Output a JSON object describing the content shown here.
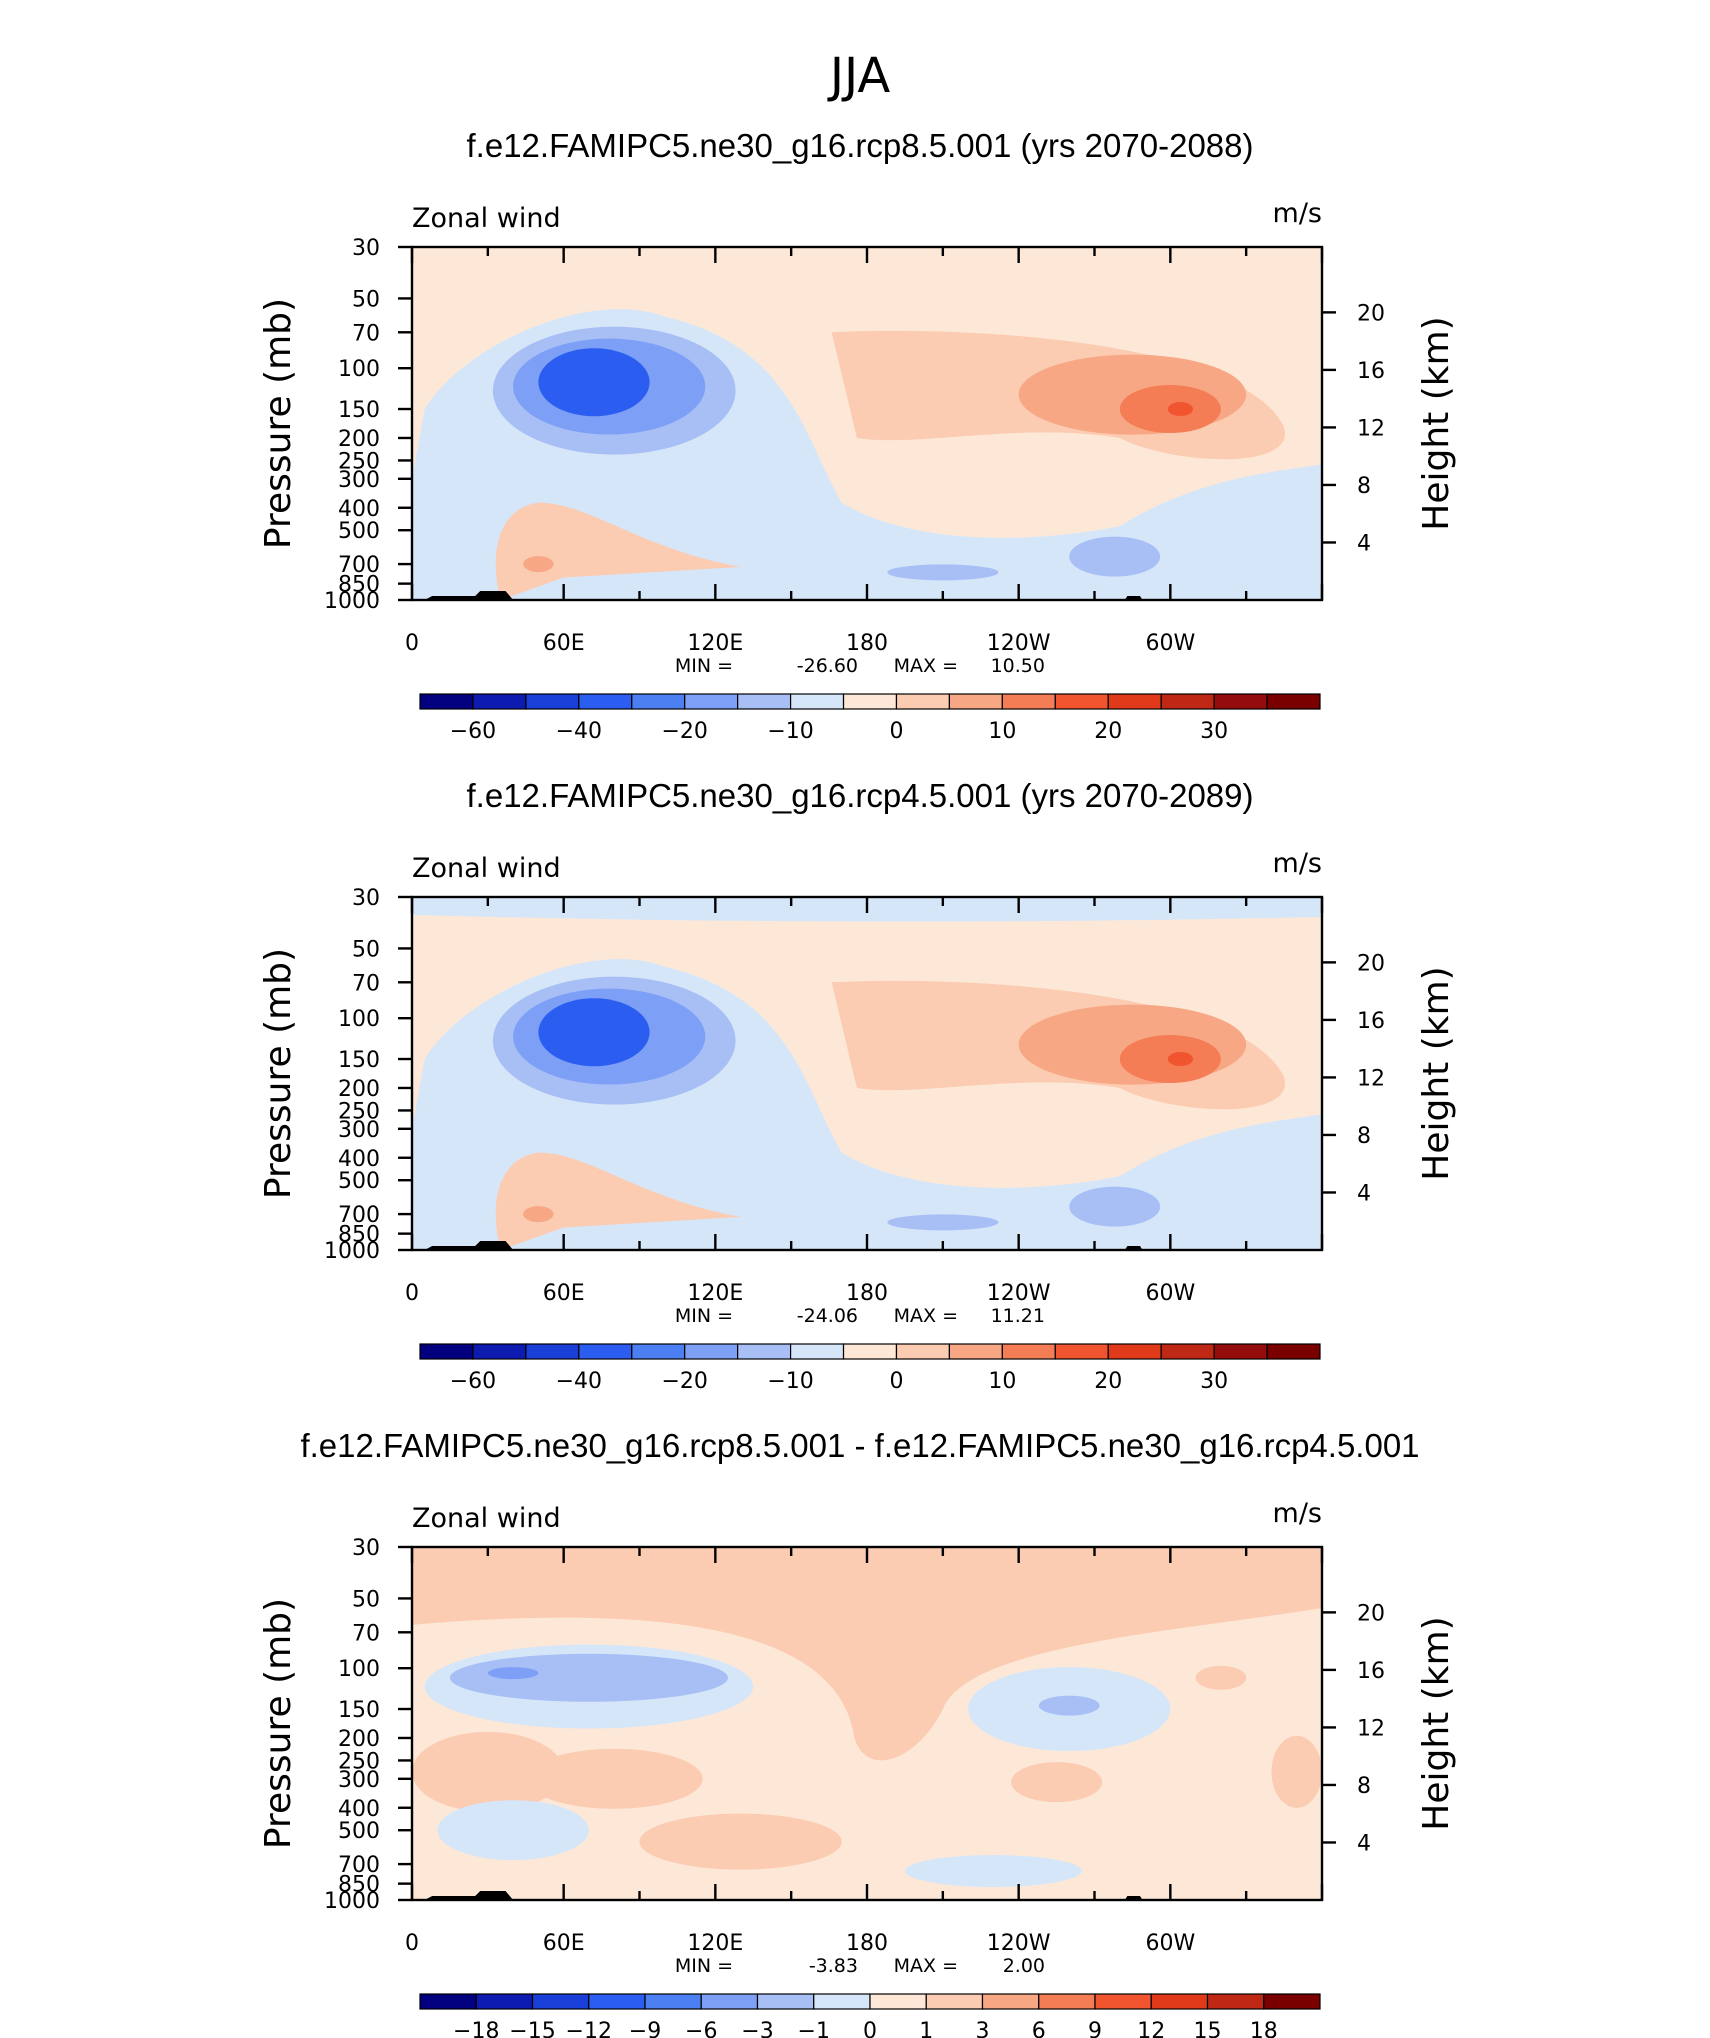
{
  "figure": {
    "title": "JJA"
  },
  "chart_data": [
    {
      "type": "contour",
      "title": "f.e12.FAMIPC5.ne30_g16.rcp8.5.001 (yrs 2070-2088)",
      "left_label": "Zonal wind",
      "units": "m/s",
      "ylabel": "Pressure (mb)",
      "ylabel_right": "Height (km)",
      "x_ticks": [
        "0",
        "60E",
        "120E",
        "180",
        "120W",
        "60W"
      ],
      "x_range": [
        0,
        360
      ],
      "y_ticks": [
        "30",
        "50",
        "70",
        "100",
        "150",
        "200",
        "250",
        "300",
        "400",
        "500",
        "700",
        "850",
        "1000"
      ],
      "y_range_mb": [
        1000,
        30
      ],
      "height_ticks": [
        "20",
        "16",
        "12",
        "8",
        "4"
      ],
      "min_label": "MIN =",
      "min_value": "-26.60",
      "max_label": "MAX =",
      "max_value": "10.50",
      "colorbar_labels": [
        "−60",
        "−40",
        "−20",
        "−10",
        "0",
        "10",
        "20",
        "30"
      ],
      "colorbar_levels": [
        -70,
        -60,
        -50,
        -40,
        -30,
        -20,
        -15,
        -10,
        -5,
        0,
        5,
        10,
        15,
        20,
        25,
        30,
        35
      ],
      "colorbar_colors": [
        "#02007f",
        "#0e1bb0",
        "#1a3fd8",
        "#2b5ef0",
        "#4c7ff2",
        "#7d9ff5",
        "#a8bff6",
        "#d6e6f9",
        "#fde8d7",
        "#fbcbb2",
        "#f7a784",
        "#f47d56",
        "#f15530",
        "#e03a1a",
        "#be2815",
        "#950c0c",
        "#7a0000"
      ]
    },
    {
      "type": "contour",
      "title": "f.e12.FAMIPC5.ne30_g16.rcp4.5.001 (yrs 2070-2089)",
      "left_label": "Zonal wind",
      "units": "m/s",
      "ylabel": "Pressure (mb)",
      "ylabel_right": "Height (km)",
      "x_ticks": [
        "0",
        "60E",
        "120E",
        "180",
        "120W",
        "60W"
      ],
      "x_range": [
        0,
        360
      ],
      "y_ticks": [
        "30",
        "50",
        "70",
        "100",
        "150",
        "200",
        "250",
        "300",
        "400",
        "500",
        "700",
        "850",
        "1000"
      ],
      "y_range_mb": [
        1000,
        30
      ],
      "height_ticks": [
        "20",
        "16",
        "12",
        "8",
        "4"
      ],
      "min_label": "MIN =",
      "min_value": "-24.06",
      "max_label": "MAX =",
      "max_value": "11.21",
      "colorbar_labels": [
        "−60",
        "−40",
        "−20",
        "−10",
        "0",
        "10",
        "20",
        "30"
      ],
      "colorbar_levels": [
        -70,
        -60,
        -50,
        -40,
        -30,
        -20,
        -15,
        -10,
        -5,
        0,
        5,
        10,
        15,
        20,
        25,
        30,
        35
      ],
      "colorbar_colors": [
        "#02007f",
        "#0e1bb0",
        "#1a3fd8",
        "#2b5ef0",
        "#4c7ff2",
        "#7d9ff5",
        "#a8bff6",
        "#d6e6f9",
        "#fde8d7",
        "#fbcbb2",
        "#f7a784",
        "#f47d56",
        "#f15530",
        "#e03a1a",
        "#be2815",
        "#950c0c",
        "#7a0000"
      ]
    },
    {
      "type": "contour",
      "title": "f.e12.FAMIPC5.ne30_g16.rcp8.5.001 - f.e12.FAMIPC5.ne30_g16.rcp4.5.001",
      "left_label": "Zonal wind",
      "units": "m/s",
      "ylabel": "Pressure (mb)",
      "ylabel_right": "Height (km)",
      "x_ticks": [
        "0",
        "60E",
        "120E",
        "180",
        "120W",
        "60W"
      ],
      "x_range": [
        0,
        360
      ],
      "y_ticks": [
        "30",
        "50",
        "70",
        "100",
        "150",
        "200",
        "250",
        "300",
        "400",
        "500",
        "700",
        "850",
        "1000"
      ],
      "y_range_mb": [
        1000,
        30
      ],
      "height_ticks": [
        "20",
        "16",
        "12",
        "8",
        "4"
      ],
      "min_label": "MIN =",
      "min_value": "-3.83",
      "max_label": "MAX =",
      "max_value": "2.00",
      "colorbar_labels": [
        "−18",
        "−15",
        "−12",
        "−9",
        "−6",
        "−3",
        "−1",
        "0",
        "1",
        "3",
        "6",
        "9",
        "12",
        "15",
        "18"
      ],
      "colorbar_levels": [
        -18,
        -15,
        -12,
        -9,
        -6,
        -3,
        -1,
        0,
        1,
        3,
        6,
        9,
        12,
        15,
        18
      ],
      "colorbar_colors": [
        "#02007f",
        "#0e1bb0",
        "#1a3fd8",
        "#2b5ef0",
        "#4c7ff2",
        "#7d9ff5",
        "#a8bff6",
        "#d6e6f9",
        "#fde8d7",
        "#fbcbb2",
        "#f7a784",
        "#f47d56",
        "#f15530",
        "#e03a1a",
        "#be2815",
        "#7a0000"
      ]
    }
  ]
}
